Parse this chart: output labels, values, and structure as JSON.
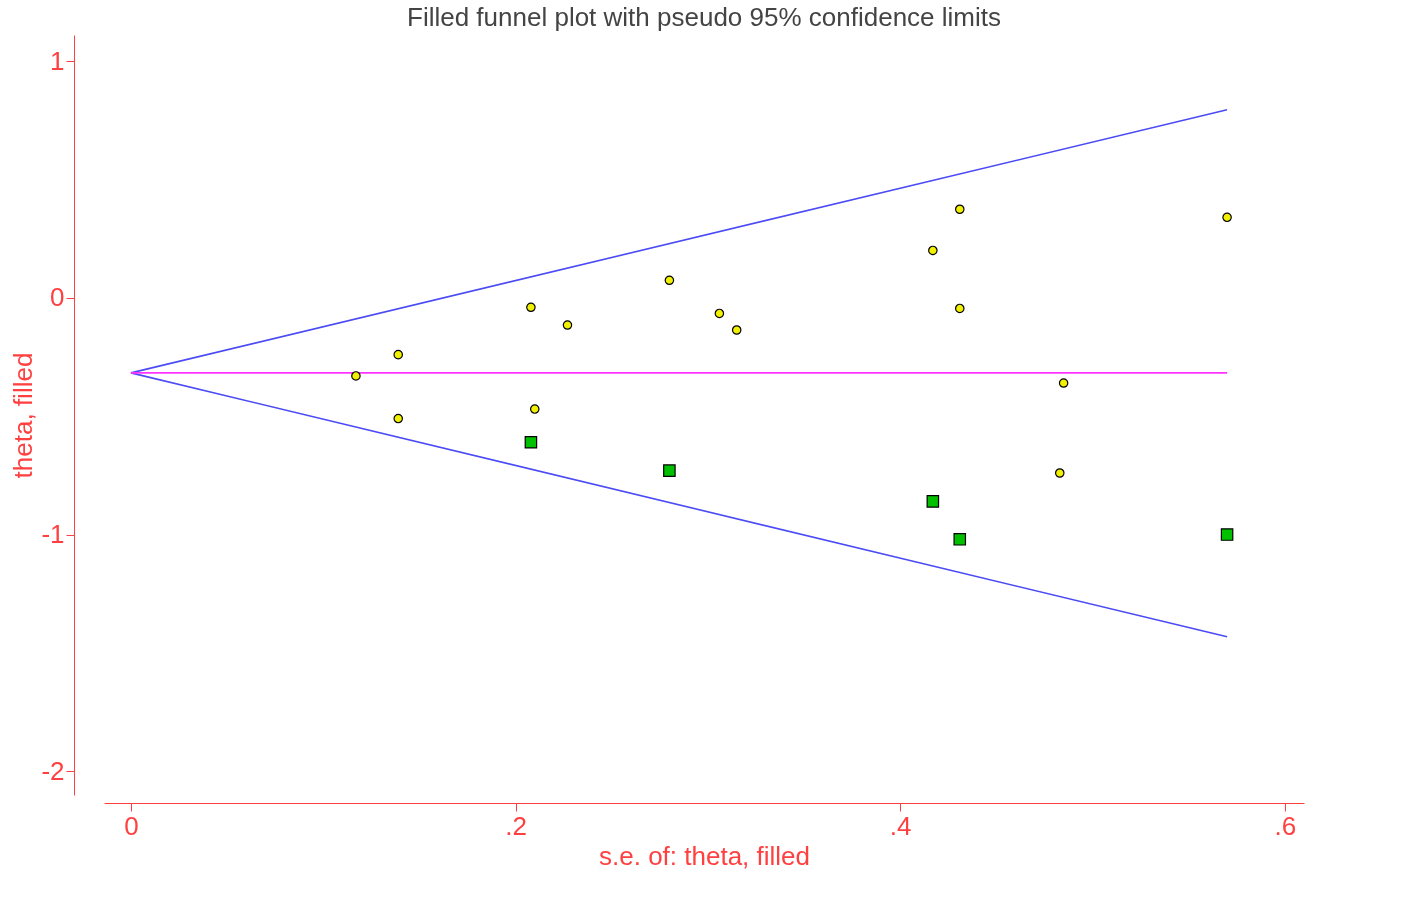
{
  "chart_data": {
    "type": "scatter",
    "title": "Filled funnel plot with pseudo 95% confidence limits",
    "xlabel": "s.e. of: theta, filled",
    "ylabel": "theta, filled",
    "xlim": [
      -0.014,
      0.61
    ],
    "ylim": [
      -2.1,
      1.11
    ],
    "xticks": [
      0,
      {
        "value": 0.2,
        "label": ".2"
      },
      {
        "value": 0.4,
        "label": ".4"
      },
      {
        "value": 0.6,
        "label": ".6"
      }
    ],
    "yticks": [
      -2,
      -1,
      0,
      1
    ],
    "grid": false,
    "series": [
      {
        "type": "line",
        "color": "#4b4bf5",
        "x": [
          0,
          0.57
        ],
        "values": [
          -0.317,
          0.794
        ]
      },
      {
        "type": "line",
        "color": "#4b4bf5",
        "x": [
          0,
          0.57
        ],
        "values": [
          -0.317,
          -1.432
        ]
      },
      {
        "type": "line",
        "color": "#ff33ff",
        "x": [
          0,
          0.57
        ],
        "values": [
          -0.317,
          -0.317
        ]
      },
      {
        "marker": "circle",
        "color": "#f0f000",
        "x": [
          0.117,
          0.139,
          0.139,
          0.208,
          0.21,
          0.227,
          0.28,
          0.306,
          0.315,
          0.417,
          0.431,
          0.431,
          0.485,
          0.483,
          0.57
        ],
        "values": [
          -0.33,
          -0.24,
          -0.51,
          -0.04,
          -0.47,
          -0.115,
          0.074,
          -0.066,
          -0.136,
          0.2,
          0.374,
          -0.045,
          -0.36,
          -0.74,
          0.34
        ]
      },
      {
        "marker": "square",
        "color": "#00c000",
        "x": [
          0.208,
          0.28,
          0.417,
          0.431,
          0.57
        ],
        "values": [
          -0.61,
          -0.73,
          -0.86,
          -1.02,
          -1.0
        ]
      }
    ]
  }
}
